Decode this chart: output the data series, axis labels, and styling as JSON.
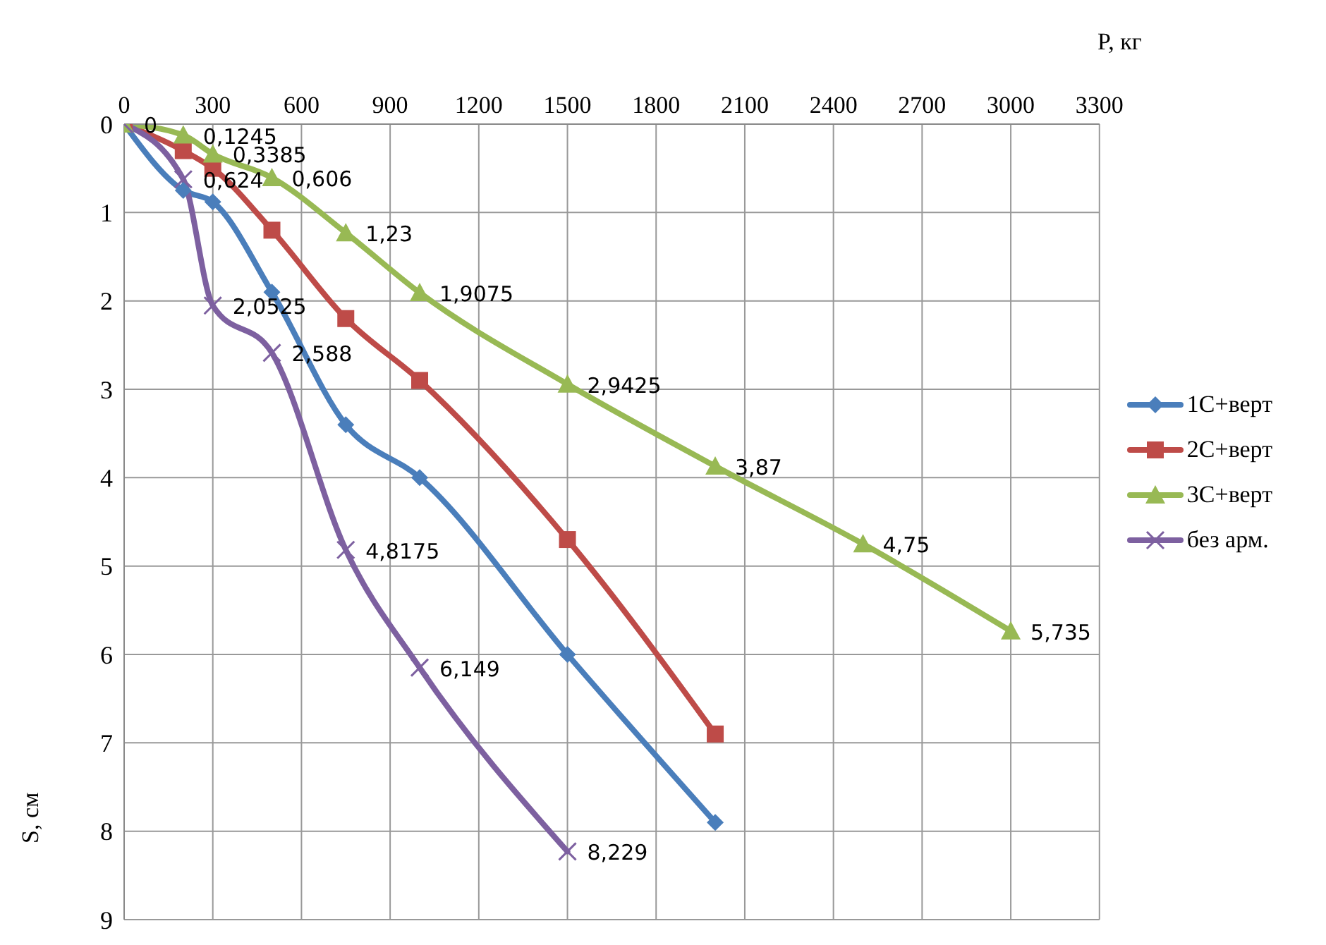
{
  "chart_data": {
    "type": "line",
    "xlabel": "P, кг",
    "ylabel": "S, см",
    "xlim": [
      0,
      3300
    ],
    "xticks": [
      0,
      300,
      600,
      900,
      1200,
      1500,
      1800,
      2100,
      2400,
      2700,
      3000,
      3300
    ],
    "ylim": [
      9,
      0
    ],
    "yticks": [
      0,
      1,
      2,
      3,
      4,
      5,
      6,
      7,
      8,
      9
    ],
    "grid": true,
    "legend": "right",
    "series": [
      {
        "name": "1C+верт",
        "color": "#4a7ebb",
        "marker": "diamond",
        "x": [
          0,
          200,
          300,
          500,
          750,
          1000,
          1500,
          2000
        ],
        "values": [
          0,
          0.75,
          0.88,
          1.9,
          3.4,
          4.0,
          6.0,
          7.9
        ]
      },
      {
        "name": "2C+верт",
        "color": "#be4b48",
        "marker": "square",
        "x": [
          0,
          200,
          300,
          500,
          750,
          1000,
          1500,
          2000
        ],
        "values": [
          0,
          0.3,
          0.5,
          1.2,
          2.2,
          2.9,
          4.7,
          6.9
        ]
      },
      {
        "name": "3C+верт",
        "color": "#98b954",
        "marker": "triangle",
        "x": [
          0,
          200,
          300,
          500,
          750,
          1000,
          1500,
          2000,
          2500,
          3000
        ],
        "values": [
          0,
          0.1245,
          0.3385,
          0.606,
          1.23,
          1.9075,
          2.9425,
          3.87,
          4.75,
          5.735
        ],
        "value_labels": [
          "0",
          "0,1245",
          "0,3385",
          "0,606",
          "1,23",
          "1,9075",
          "2,9425",
          "3,87",
          "4,75",
          "5,735"
        ]
      },
      {
        "name": "без арм.",
        "color": "#7d60a0",
        "marker": "cross",
        "x": [
          0,
          200,
          300,
          500,
          750,
          1000,
          1500
        ],
        "values": [
          0,
          0.624,
          2.0525,
          2.588,
          4.8175,
          6.149,
          8.229
        ],
        "value_labels": [
          null,
          "0,624",
          "2,0525",
          "2,588",
          "4,8175",
          "6,149",
          "8,229"
        ]
      }
    ]
  }
}
